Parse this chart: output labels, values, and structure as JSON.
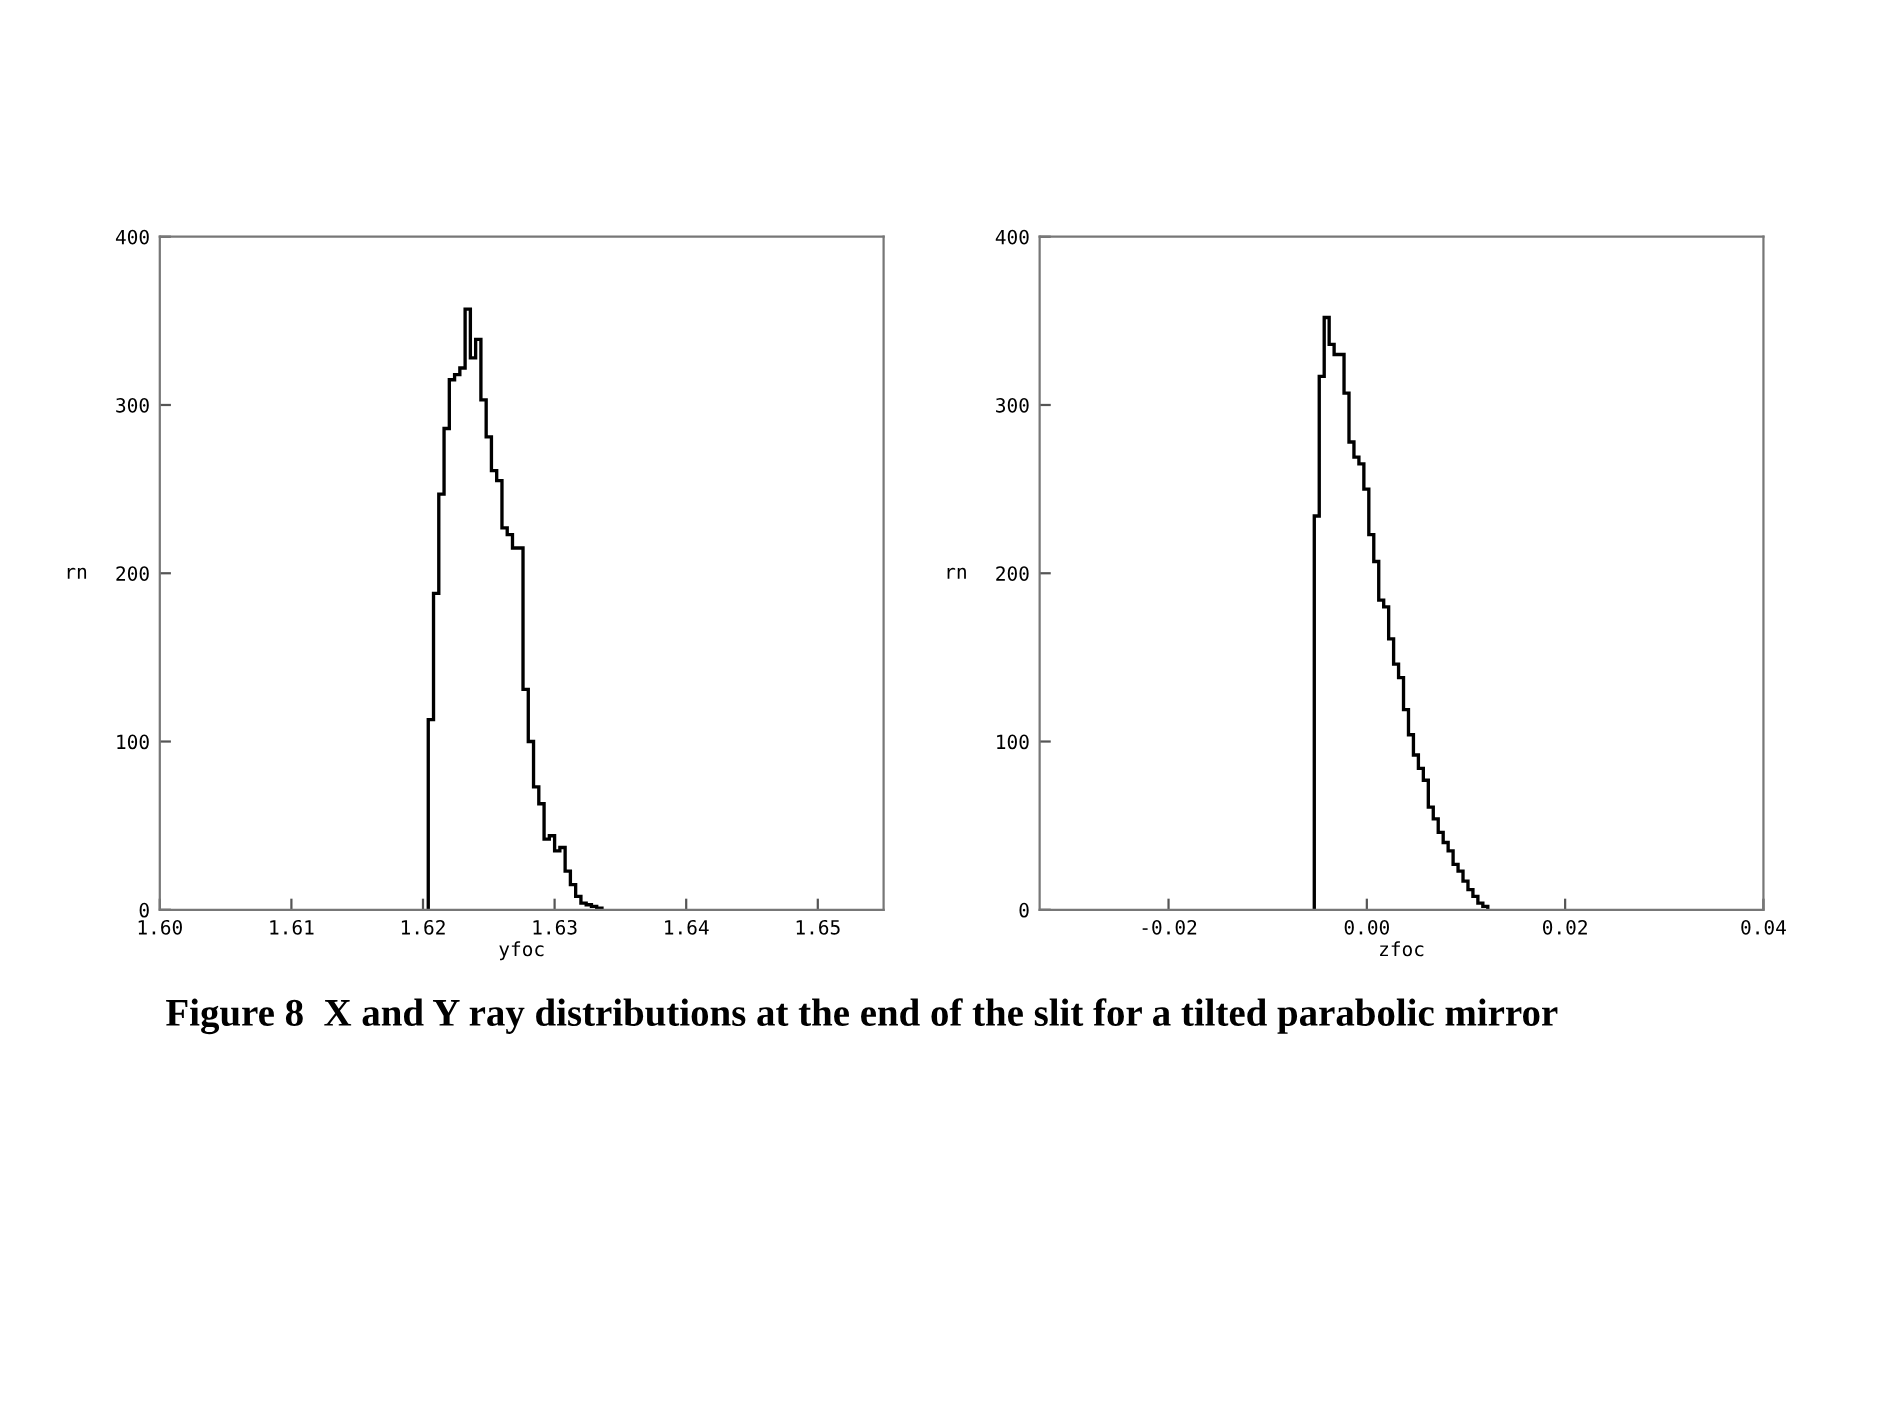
{
  "chart_data": [
    {
      "type": "histogram",
      "xlabel": "yfoc",
      "ylabel": "rn",
      "color": "#000000",
      "grid": false,
      "legend": false,
      "bins": [
        1.6204,
        1.6208,
        1.6212,
        1.6216,
        1.622,
        1.6224,
        1.6228,
        1.6232,
        1.6236,
        1.624,
        1.6244,
        1.6248,
        1.6252,
        1.6256,
        1.626,
        1.6264,
        1.6268,
        1.6272,
        1.6276,
        1.628,
        1.6284,
        1.6288,
        1.6292,
        1.6296,
        1.63,
        1.6304,
        1.6308,
        1.6312,
        1.6316,
        1.632,
        1.6324,
        1.6328,
        1.6332,
        1.6336
      ],
      "values": [
        113,
        188,
        247,
        286,
        315,
        318,
        322,
        357,
        328,
        339,
        303,
        281,
        261,
        255,
        227,
        223,
        215,
        215,
        131,
        100,
        73,
        63,
        42,
        44,
        35,
        37,
        23,
        15,
        8,
        4,
        3,
        2,
        1
      ],
      "xlim": [
        1.6,
        1.655
      ],
      "xticks": [
        {
          "value": 1.6,
          "label": "1.60"
        },
        {
          "value": 1.61,
          "label": "1.61"
        },
        {
          "value": 1.62,
          "label": "1.62"
        },
        {
          "value": 1.63,
          "label": "1.63"
        },
        {
          "value": 1.64,
          "label": "1.64"
        },
        {
          "value": 1.65,
          "label": "1.65"
        }
      ],
      "ylim": [
        0,
        400
      ],
      "yticks": [
        0,
        100,
        200,
        300,
        400
      ],
      "annotations": [
        "Figure 8  X and Y ray distributions at the end of the slit for a tilted parabolic mirror"
      ]
    },
    {
      "type": "histogram",
      "xlabel": "zfoc",
      "ylabel": "rn",
      "color": "#000000",
      "grid": false,
      "legend": false,
      "bins": [
        -0.0053,
        -0.0048,
        -0.0043,
        -0.0038,
        -0.0033,
        -0.0028,
        -0.0023,
        -0.0018,
        -0.0013,
        -0.0008,
        -0.0003,
        0.0002,
        0.0007,
        0.0012,
        0.0017,
        0.0022,
        0.0027,
        0.0032,
        0.0037,
        0.0042,
        0.0047,
        0.0052,
        0.0057,
        0.0062,
        0.0067,
        0.0072,
        0.0077,
        0.0082,
        0.0087,
        0.0092,
        0.0097,
        0.0102,
        0.0107,
        0.0112,
        0.0117,
        0.0122
      ],
      "values": [
        234,
        317,
        352,
        336,
        330,
        330,
        307,
        278,
        269,
        265,
        250,
        223,
        207,
        184,
        180,
        161,
        146,
        138,
        119,
        104,
        92,
        84,
        77,
        61,
        54,
        46,
        40,
        35,
        27,
        23,
        17,
        12,
        8,
        4,
        2
      ],
      "xlim": [
        -0.033,
        0.04
      ],
      "xticks": [
        {
          "value": -0.02,
          "label": "-0.02"
        },
        {
          "value": 0.0,
          "label": "0.00"
        },
        {
          "value": 0.02,
          "label": "0.02"
        },
        {
          "value": 0.04,
          "label": "0.04"
        }
      ],
      "ylim": [
        0,
        400
      ],
      "yticks": [
        0,
        100,
        200,
        300,
        400
      ]
    }
  ]
}
